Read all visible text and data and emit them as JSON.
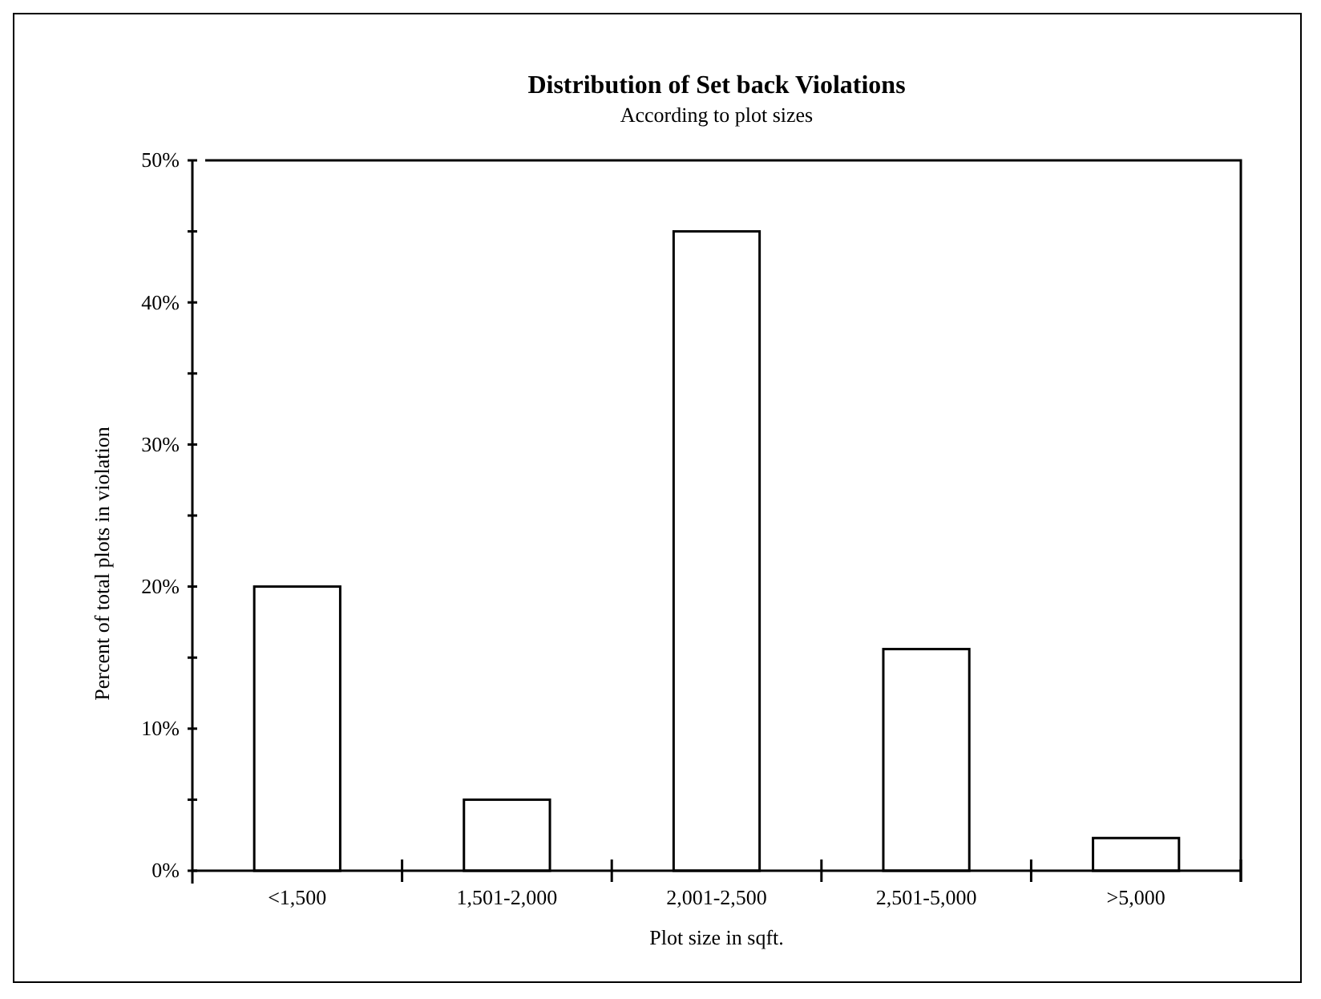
{
  "chart_data": {
    "type": "bar",
    "title": "Distribution of Set back Violations",
    "subtitle": "According to plot sizes",
    "xlabel": "Plot size in sqft.",
    "ylabel": "Percent of total plots in violation",
    "categories": [
      "<1,500",
      "1,501-2,000",
      "2,001-2,500",
      "2,501-5,000",
      ">5,000"
    ],
    "values": [
      20,
      5,
      45,
      15.6,
      2.3
    ],
    "color": "#ffffff",
    "ylim": [
      0,
      50
    ],
    "yticks": [
      {
        "value": 0,
        "label": "0%"
      },
      {
        "value": 5,
        "label": null
      },
      {
        "value": 10,
        "label": "10%"
      },
      {
        "value": 15,
        "label": null
      },
      {
        "value": 20,
        "label": "20%"
      },
      {
        "value": 25,
        "label": null
      },
      {
        "value": 30,
        "label": "30%"
      },
      {
        "value": 35,
        "label": null
      },
      {
        "value": 40,
        "label": "40%"
      },
      {
        "value": 45,
        "label": null
      },
      {
        "value": 50,
        "label": "50%"
      }
    ],
    "grid": false
  }
}
